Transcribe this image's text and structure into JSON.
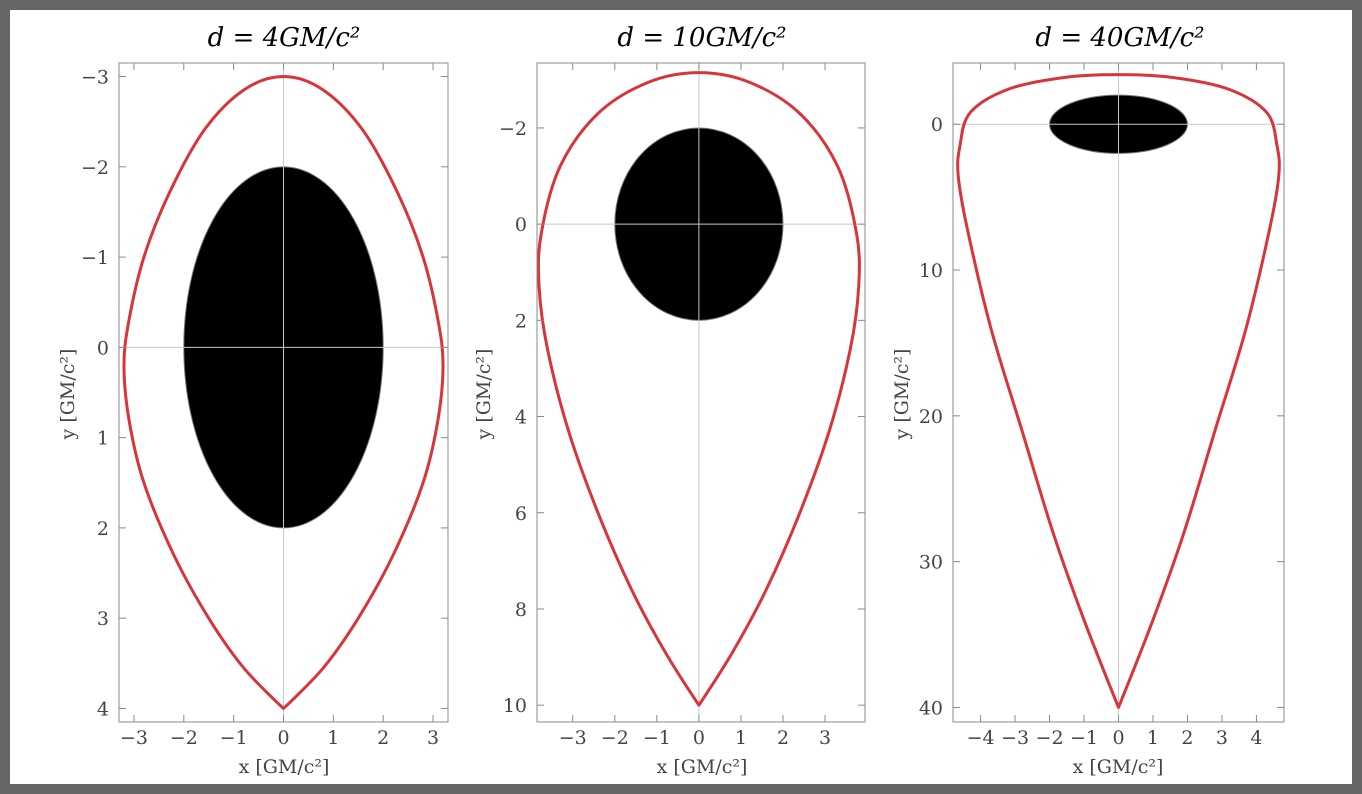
{
  "chart_data": [
    {
      "type": "line",
      "title": "d = 4GM/c²",
      "xlabel": "x [GM/c²]",
      "ylabel": "y [GM/c²]",
      "xlim": [
        -3.3,
        3.3
      ],
      "ylim": [
        -3.15,
        4.15
      ],
      "y_inverted": true,
      "grid": "axes lines at x=0 and y=0",
      "xticks": [
        -3,
        -2,
        -1,
        0,
        1,
        2,
        3
      ],
      "xtick_labels": [
        "−3",
        "−2",
        "−1",
        "0",
        "1",
        "2",
        "3"
      ],
      "yticks": [
        -3,
        -2,
        -1,
        0,
        1,
        2,
        3,
        4
      ],
      "ytick_labels": [
        "−3",
        "−2",
        "−1",
        "0",
        "1",
        "2",
        "3",
        "4"
      ],
      "black_disk": {
        "cx": 0,
        "cy": 0,
        "rx": 2,
        "ry": 2
      },
      "series": [
        {
          "color": "#d9343a",
          "shape": "closed",
          "right_half": [
            [
              0,
              -3
            ],
            [
              0.8,
              -2.85
            ],
            [
              1.6,
              -2.4
            ],
            [
              2.3,
              -1.7
            ],
            [
              2.8,
              -1.0
            ],
            [
              3.1,
              -0.3
            ],
            [
              3.2,
              0.2
            ],
            [
              3.1,
              0.8
            ],
            [
              2.8,
              1.5
            ],
            [
              2.2,
              2.3
            ],
            [
              1.5,
              3.0
            ],
            [
              0.8,
              3.55
            ],
            [
              0,
              4
            ]
          ]
        }
      ]
    },
    {
      "type": "line",
      "title": "d = 10GM/c²",
      "xlabel": "x [GM/c²]",
      "ylabel": "y [GM/c²]",
      "xlim": [
        -3.85,
        3.95
      ],
      "ylim": [
        -3.35,
        10.35
      ],
      "y_inverted": true,
      "grid": "axes lines at x=0 and y=0",
      "xticks": [
        -3,
        -2,
        -1,
        0,
        1,
        2,
        3
      ],
      "xtick_labels": [
        "−3",
        "−2",
        "−1",
        "0",
        "1",
        "2",
        "3"
      ],
      "yticks": [
        -2,
        0,
        2,
        4,
        6,
        8,
        10
      ],
      "ytick_labels": [
        "−2",
        "0",
        "2",
        "4",
        "6",
        "8",
        "10"
      ],
      "black_disk": {
        "cx": 0,
        "cy": 0,
        "rx": 2,
        "ry": 2
      },
      "series": [
        {
          "color": "#d9343a",
          "shape": "closed",
          "right_half": [
            [
              0,
              -3.15
            ],
            [
              1.2,
              -2.95
            ],
            [
              2.4,
              -2.3
            ],
            [
              3.3,
              -1.2
            ],
            [
              3.75,
              0.2
            ],
            [
              3.8,
              1.3
            ],
            [
              3.6,
              2.6
            ],
            [
              3.1,
              4.3
            ],
            [
              2.4,
              6.0
            ],
            [
              1.6,
              7.6
            ],
            [
              0.8,
              8.9
            ],
            [
              0,
              10
            ]
          ]
        }
      ]
    },
    {
      "type": "line",
      "title": "d = 40GM/c²",
      "xlabel": "x [GM/c²]",
      "ylabel": "y [GM/c²]",
      "xlim": [
        -4.8,
        4.8
      ],
      "ylim": [
        -4.2,
        41.0
      ],
      "y_inverted": true,
      "grid": "axes lines at x=0 and y=0",
      "xticks": [
        -4,
        -3,
        -2,
        -1,
        0,
        1,
        2,
        3,
        4
      ],
      "xtick_labels": [
        "−4",
        "−3",
        "−2",
        "−1",
        "0",
        "1",
        "2",
        "3",
        "4"
      ],
      "yticks": [
        0,
        10,
        20,
        30,
        40
      ],
      "ytick_labels": [
        "0",
        "10",
        "20",
        "30",
        "40"
      ],
      "black_disk": {
        "cx": 0,
        "cy": 0,
        "rx": 2,
        "ry": 2
      },
      "series": [
        {
          "color": "#d9343a",
          "shape": "closed",
          "right_half": [
            [
              0,
              -3.4
            ],
            [
              1.6,
              -3.2
            ],
            [
              3.2,
              -2.4
            ],
            [
              4.3,
              -0.8
            ],
            [
              4.6,
              1.5
            ],
            [
              4.65,
              3.5
            ],
            [
              4.4,
              7.0
            ],
            [
              3.7,
              14.0
            ],
            [
              2.8,
              21.0
            ],
            [
              1.9,
              28.0
            ],
            [
              1.0,
              34.0
            ],
            [
              0,
              40
            ]
          ]
        }
      ]
    }
  ]
}
